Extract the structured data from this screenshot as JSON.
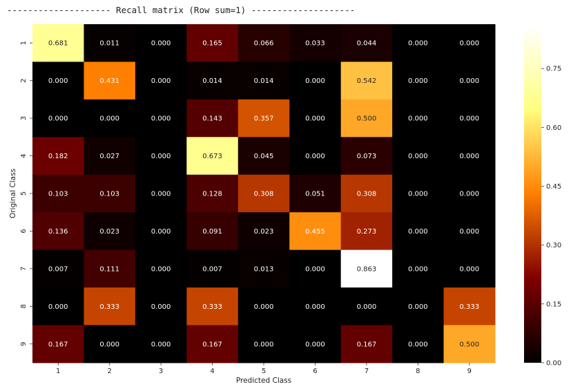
{
  "header_text": "-------------------- Recall matrix (Row sum=1) --------------------",
  "chart_data": {
    "type": "heatmap",
    "title": "Recall matrix (Row sum=1)",
    "xlabel": "Predicted Class",
    "ylabel": "Original Class",
    "x_categories": [
      "1",
      "2",
      "3",
      "4",
      "5",
      "6",
      "7",
      "8",
      "9"
    ],
    "y_categories": [
      "1",
      "2",
      "3",
      "4",
      "5",
      "6",
      "7",
      "8",
      "9"
    ],
    "values": [
      [
        0.681,
        0.011,
        0.0,
        0.165,
        0.066,
        0.033,
        0.044,
        0.0,
        0.0
      ],
      [
        0.0,
        0.431,
        0.0,
        0.014,
        0.014,
        0.0,
        0.542,
        0.0,
        0.0
      ],
      [
        0.0,
        0.0,
        0.0,
        0.143,
        0.357,
        0.0,
        0.5,
        0.0,
        0.0
      ],
      [
        0.182,
        0.027,
        0.0,
        0.673,
        0.045,
        0.0,
        0.073,
        0.0,
        0.0
      ],
      [
        0.103,
        0.103,
        0.0,
        0.128,
        0.308,
        0.051,
        0.308,
        0.0,
        0.0
      ],
      [
        0.136,
        0.023,
        0.0,
        0.091,
        0.023,
        0.455,
        0.273,
        0.0,
        0.0
      ],
      [
        0.007,
        0.111,
        0.0,
        0.007,
        0.013,
        0.0,
        0.863,
        0.0,
        0.0
      ],
      [
        0.0,
        0.333,
        0.0,
        0.333,
        0.0,
        0.0,
        0.0,
        0.0,
        0.333
      ],
      [
        0.167,
        0.0,
        0.0,
        0.167,
        0.0,
        0.0,
        0.167,
        0.0,
        0.5
      ]
    ],
    "colormap": "afmhot",
    "vmin": 0.0,
    "vmax": 0.863,
    "colorbar_ticks": [
      "0.00",
      "0.15",
      "0.30",
      "0.45",
      "0.60",
      "0.75"
    ],
    "colorbar_tick_values": [
      0.0,
      0.15,
      0.3,
      0.45,
      0.6,
      0.75
    ]
  }
}
